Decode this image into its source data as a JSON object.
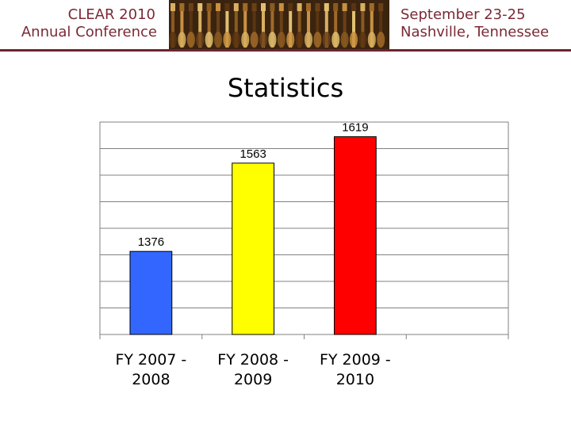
{
  "header": {
    "left_line1": "CLEAR 2010",
    "left_line2": "Annual Conference",
    "right_line1": "September 23-25",
    "right_line2": "Nashville, Tennessee"
  },
  "slide": {
    "title": "Statistics"
  },
  "colors": {
    "header_text": "#7a2a35",
    "rule": "#6e2430"
  },
  "chart_data": {
    "type": "bar",
    "categories": [
      "FY 2007 - 2008",
      "FY 2008 - 2009",
      "FY 2009 - 2010"
    ],
    "category_lines": [
      [
        "FY 2007 -",
        "2008"
      ],
      [
        "FY 2008 -",
        "2009"
      ],
      [
        "FY 2009 -",
        "2010"
      ]
    ],
    "values": [
      1376,
      1563,
      1619
    ],
    "colors": [
      "#3366ff",
      "#ffff00",
      "#ff0000"
    ],
    "ylim": [
      1200,
      1650
    ],
    "grid": true,
    "xlabel": "",
    "ylabel": ""
  }
}
